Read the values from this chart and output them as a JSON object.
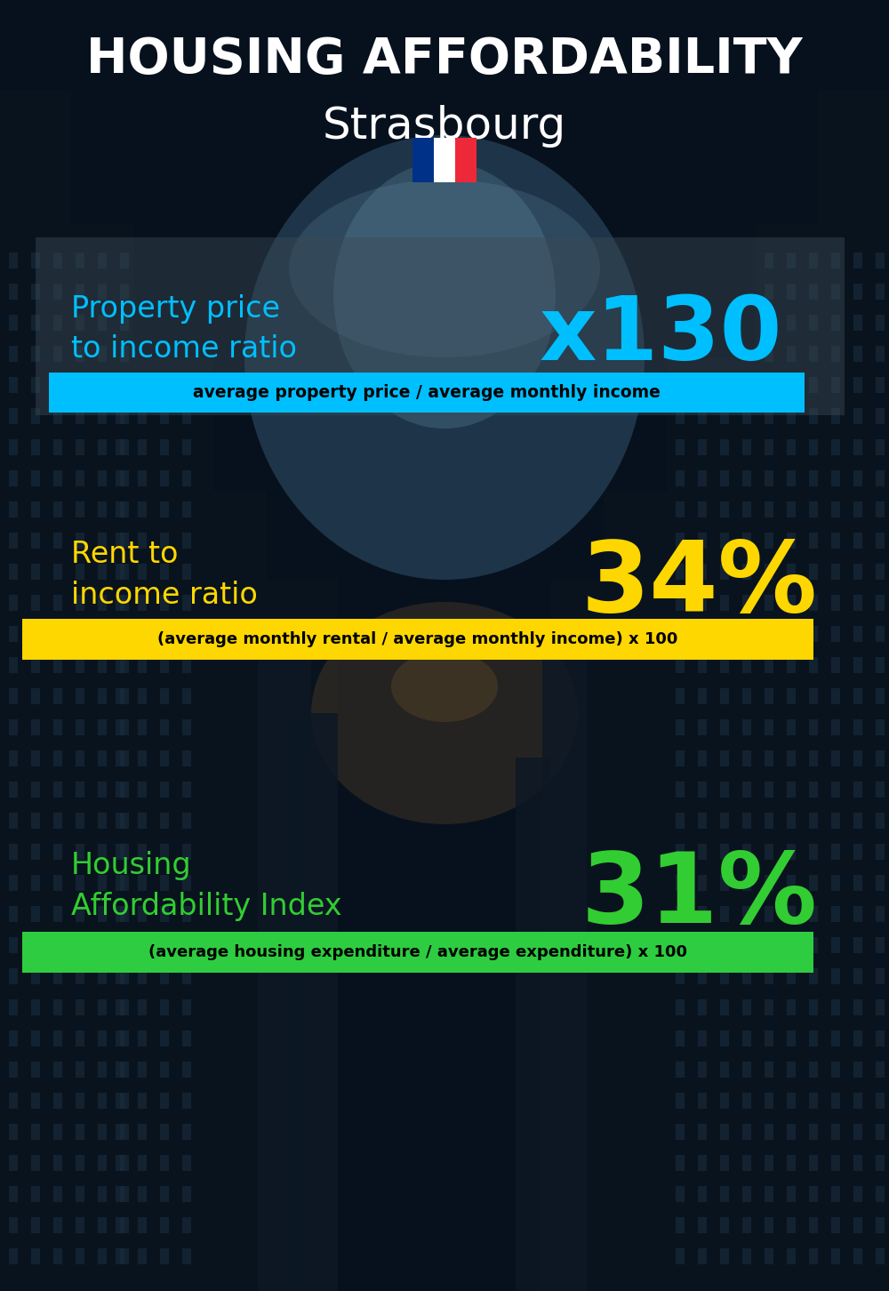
{
  "title_line1": "HOUSING AFFORDABILITY",
  "title_line2": "Strasbourg",
  "bg_color": "#050d18",
  "section1_label": "Property price\nto income ratio",
  "section1_value": "x130",
  "section1_label_color": "#00bfff",
  "section1_value_color": "#00bfff",
  "section1_band_text": "average property price / average monthly income",
  "section1_band_bg": "#00bfff",
  "section1_band_text_color": "#000000",
  "section2_label": "Rent to\nincome ratio",
  "section2_value": "34%",
  "section2_label_color": "#ffd700",
  "section2_value_color": "#ffd700",
  "section2_band_text": "(average monthly rental / average monthly income) x 100",
  "section2_band_bg": "#ffd700",
  "section2_band_text_color": "#000000",
  "section3_label": "Housing\nAffordability Index",
  "section3_value": "31%",
  "section3_label_color": "#32cd32",
  "section3_value_color": "#32cd32",
  "section3_band_text": "(average housing expenditure / average expenditure) x 100",
  "section3_band_bg": "#2ecc40",
  "section3_band_text_color": "#000000",
  "flag_blue": "#003189",
  "flag_white": "#ffffff",
  "flag_red": "#ed2939",
  "panel1_color": "#3a4a58",
  "panel1_alpha": 0.5
}
